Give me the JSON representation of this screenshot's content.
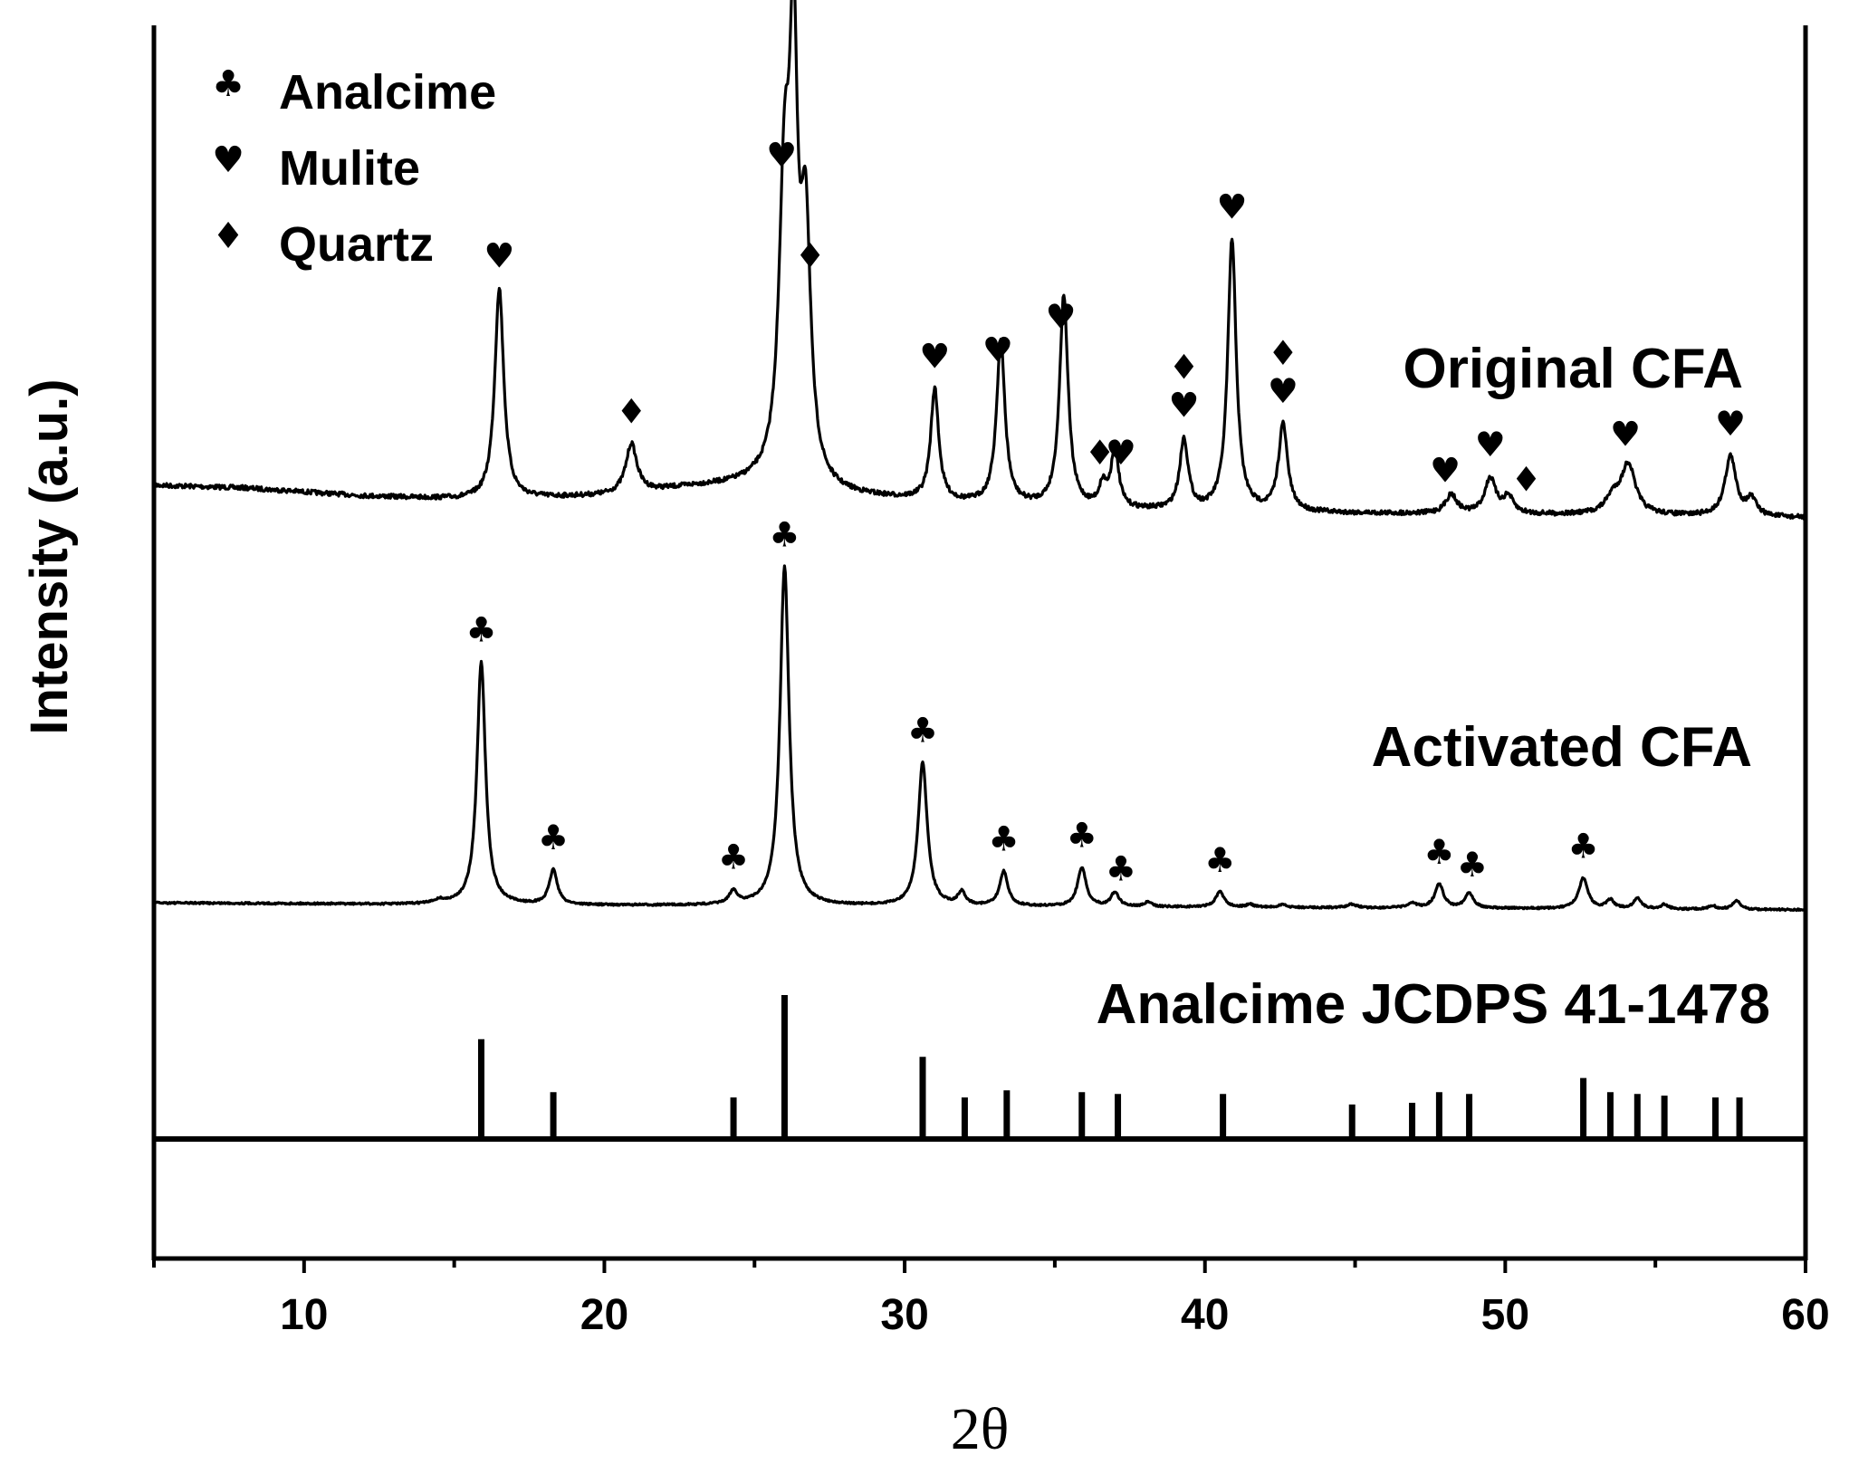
{
  "chart_data": {
    "type": "line",
    "xlabel": "2θ",
    "ylabel": "Intensity (a.u.)",
    "xlim": [
      5,
      60
    ],
    "xticks": [
      10,
      20,
      30,
      40,
      50,
      60
    ],
    "legend": {
      "placement": "top-left",
      "entries": [
        {
          "symbol": "♣",
          "label": "Analcime"
        },
        {
          "symbol": "♥",
          "label": "Mulite"
        },
        {
          "symbol": "♦",
          "label": "Quartz"
        }
      ]
    },
    "series": [
      {
        "name": "Original CFA",
        "background": [
          [
            5,
            0.06
          ],
          [
            8,
            0.055
          ],
          [
            12,
            0.04
          ],
          [
            16,
            0.032
          ],
          [
            20,
            0.04
          ],
          [
            23,
            0.056
          ],
          [
            25,
            0.06
          ],
          [
            28,
            0.04
          ],
          [
            32,
            0.025
          ],
          [
            36,
            0.015
          ],
          [
            40,
            0.01
          ],
          [
            45,
            0.008
          ],
          [
            50,
            0.006
          ],
          [
            55,
            0.004
          ],
          [
            60,
            0.0
          ]
        ],
        "peaks": [
          {
            "x": 16.5,
            "h": 0.39,
            "w": 0.18
          },
          {
            "x": 20.9,
            "h": 0.09,
            "w": 0.22
          },
          {
            "x": 26.0,
            "h": 0.52,
            "w": 0.22
          },
          {
            "x": 26.3,
            "h": 0.7,
            "w": 0.16
          },
          {
            "x": 26.7,
            "h": 0.45,
            "w": 0.2
          },
          {
            "x": 31.0,
            "h": 0.205,
            "w": 0.16
          },
          {
            "x": 33.2,
            "h": 0.3,
            "w": 0.17
          },
          {
            "x": 35.3,
            "h": 0.39,
            "w": 0.17
          },
          {
            "x": 36.6,
            "h": 0.04,
            "w": 0.15
          },
          {
            "x": 37.0,
            "h": 0.11,
            "w": 0.15
          },
          {
            "x": 39.3,
            "h": 0.13,
            "w": 0.17
          },
          {
            "x": 40.9,
            "h": 0.5,
            "w": 0.17
          },
          {
            "x": 42.6,
            "h": 0.16,
            "w": 0.18
          },
          {
            "x": 48.2,
            "h": 0.035,
            "w": 0.22
          },
          {
            "x": 49.5,
            "h": 0.065,
            "w": 0.22
          },
          {
            "x": 50.1,
            "h": 0.03,
            "w": 0.2
          },
          {
            "x": 53.6,
            "h": 0.03,
            "w": 0.3
          },
          {
            "x": 54.1,
            "h": 0.09,
            "w": 0.28
          },
          {
            "x": 57.5,
            "h": 0.11,
            "w": 0.22
          },
          {
            "x": 58.2,
            "h": 0.03,
            "w": 0.2
          }
        ],
        "markers": [
          {
            "x": 16.5,
            "symbols": [
              "♥"
            ]
          },
          {
            "x": 20.9,
            "symbols": [
              "♦"
            ]
          },
          {
            "x": 25.9,
            "symbols": [
              "♥"
            ]
          },
          {
            "x": 26.35,
            "symbols": [
              "♥"
            ]
          },
          {
            "x": 26.85,
            "symbols": [
              "♦"
            ]
          },
          {
            "x": 31.0,
            "symbols": [
              "♥"
            ]
          },
          {
            "x": 33.1,
            "symbols": [
              "♥"
            ]
          },
          {
            "x": 35.2,
            "symbols": [
              "♥"
            ]
          },
          {
            "x": 36.5,
            "symbols": [
              "♦"
            ]
          },
          {
            "x": 37.2,
            "symbols": [
              "♥"
            ]
          },
          {
            "x": 39.3,
            "symbols": [
              "♦",
              "♥"
            ]
          },
          {
            "x": 40.9,
            "symbols": [
              "♥"
            ]
          },
          {
            "x": 42.6,
            "symbols": [
              "♦",
              "♥"
            ]
          },
          {
            "x": 48.0,
            "symbols": [
              "♥"
            ]
          },
          {
            "x": 49.5,
            "symbols": [
              "♥"
            ]
          },
          {
            "x": 50.7,
            "symbols": [
              "♦"
            ]
          },
          {
            "x": 54.0,
            "symbols": [
              "♥"
            ]
          },
          {
            "x": 57.5,
            "symbols": [
              "♥"
            ]
          }
        ]
      },
      {
        "name": "Activated CFA",
        "background": [
          [
            5,
            0.01
          ],
          [
            10,
            0.008
          ],
          [
            15,
            0.005
          ],
          [
            20,
            0.004
          ],
          [
            25,
            0.003
          ],
          [
            30,
            0.002
          ],
          [
            40,
            0.0
          ],
          [
            50,
            -0.003
          ],
          [
            60,
            -0.006
          ]
        ],
        "peaks": [
          {
            "x": 14.5,
            "h": 0.008,
            "w": 0.2
          },
          {
            "x": 15.9,
            "h": 0.56,
            "w": 0.17
          },
          {
            "x": 18.3,
            "h": 0.08,
            "w": 0.16
          },
          {
            "x": 24.3,
            "h": 0.03,
            "w": 0.16
          },
          {
            "x": 26.0,
            "h": 0.78,
            "w": 0.18
          },
          {
            "x": 30.6,
            "h": 0.33,
            "w": 0.18
          },
          {
            "x": 31.9,
            "h": 0.03,
            "w": 0.15
          },
          {
            "x": 33.3,
            "h": 0.08,
            "w": 0.16
          },
          {
            "x": 35.9,
            "h": 0.09,
            "w": 0.17
          },
          {
            "x": 37.0,
            "h": 0.032,
            "w": 0.16
          },
          {
            "x": 38.1,
            "h": 0.01,
            "w": 0.15
          },
          {
            "x": 40.5,
            "h": 0.035,
            "w": 0.17
          },
          {
            "x": 41.5,
            "h": 0.006,
            "w": 0.15
          },
          {
            "x": 42.6,
            "h": 0.006,
            "w": 0.15
          },
          {
            "x": 44.9,
            "h": 0.008,
            "w": 0.18
          },
          {
            "x": 46.9,
            "h": 0.01,
            "w": 0.18
          },
          {
            "x": 47.8,
            "h": 0.055,
            "w": 0.17
          },
          {
            "x": 48.8,
            "h": 0.035,
            "w": 0.17
          },
          {
            "x": 52.6,
            "h": 0.07,
            "w": 0.18
          },
          {
            "x": 53.5,
            "h": 0.02,
            "w": 0.15
          },
          {
            "x": 54.4,
            "h": 0.025,
            "w": 0.15
          },
          {
            "x": 55.3,
            "h": 0.01,
            "w": 0.15
          },
          {
            "x": 56.9,
            "h": 0.008,
            "w": 0.15
          },
          {
            "x": 57.7,
            "h": 0.02,
            "w": 0.15
          }
        ],
        "markers": [
          {
            "x": 15.9,
            "symbols": [
              "♣"
            ]
          },
          {
            "x": 18.3,
            "symbols": [
              "♣"
            ]
          },
          {
            "x": 24.3,
            "symbols": [
              "♣"
            ]
          },
          {
            "x": 26.0,
            "symbols": [
              "♣"
            ]
          },
          {
            "x": 30.6,
            "symbols": [
              "♣"
            ]
          },
          {
            "x": 33.3,
            "symbols": [
              "♣"
            ]
          },
          {
            "x": 35.9,
            "symbols": [
              "♣"
            ]
          },
          {
            "x": 37.2,
            "symbols": [
              "♣"
            ]
          },
          {
            "x": 40.5,
            "symbols": [
              "♣"
            ]
          },
          {
            "x": 47.8,
            "symbols": [
              "♣"
            ]
          },
          {
            "x": 48.9,
            "symbols": [
              "♣"
            ]
          },
          {
            "x": 52.6,
            "symbols": [
              "♣"
            ]
          }
        ]
      },
      {
        "name": "Analcime JCDPS 41-1478",
        "type": "stick",
        "sticks": [
          {
            "x": 15.9,
            "h": 0.55
          },
          {
            "x": 18.3,
            "h": 0.25
          },
          {
            "x": 24.3,
            "h": 0.22
          },
          {
            "x": 26.0,
            "h": 0.8
          },
          {
            "x": 30.6,
            "h": 0.45
          },
          {
            "x": 32.0,
            "h": 0.22
          },
          {
            "x": 33.4,
            "h": 0.26
          },
          {
            "x": 35.9,
            "h": 0.25
          },
          {
            "x": 37.1,
            "h": 0.24
          },
          {
            "x": 40.6,
            "h": 0.24
          },
          {
            "x": 44.9,
            "h": 0.18
          },
          {
            "x": 46.9,
            "h": 0.19
          },
          {
            "x": 47.8,
            "h": 0.25
          },
          {
            "x": 48.8,
            "h": 0.24
          },
          {
            "x": 52.6,
            "h": 0.33
          },
          {
            "x": 53.5,
            "h": 0.25
          },
          {
            "x": 54.4,
            "h": 0.24
          },
          {
            "x": 55.3,
            "h": 0.23
          },
          {
            "x": 57.0,
            "h": 0.22
          },
          {
            "x": 57.8,
            "h": 0.22
          }
        ]
      }
    ]
  }
}
